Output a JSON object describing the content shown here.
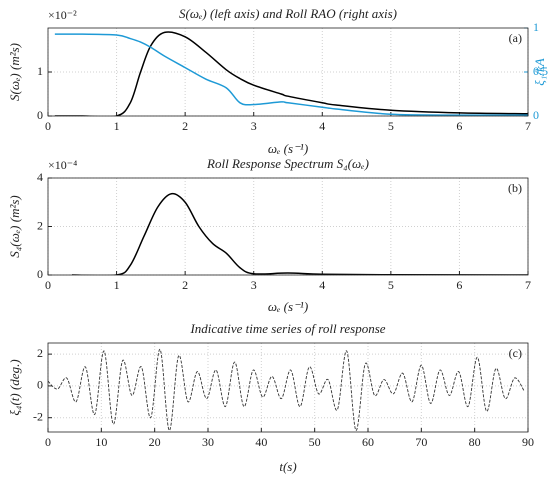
{
  "chart_data": [
    {
      "type": "line",
      "panel_label": "(a)",
      "title": "S(ωₑ) (left axis) and Roll RAO (right axis)",
      "xlabel": "ωₑ (s⁻¹)",
      "ylabel": "S(ωₑ) (m²s)",
      "y_exponent": "×10⁻²",
      "y2label": "ξ₁/kA",
      "xlim": [
        0,
        7
      ],
      "xticks": [
        0,
        1,
        2,
        3,
        4,
        5,
        6,
        7
      ],
      "ylim": [
        0,
        2
      ],
      "yticks": [
        0,
        1
      ],
      "y2lim": [
        0,
        1
      ],
      "y2ticks": [
        0,
        0.5,
        1
      ],
      "grid": true,
      "x": [
        0.1,
        0.5,
        1.0,
        1.2,
        1.35,
        1.5,
        1.7,
        2.0,
        2.3,
        2.6,
        2.8,
        3.0,
        3.4,
        3.5,
        4.0,
        4.2,
        5.0,
        6.0,
        7.0
      ],
      "series": [
        {
          "color": "#000000",
          "values": [
            0,
            0,
            0,
            0.3,
            1.0,
            1.6,
            1.9,
            1.8,
            1.45,
            1.05,
            0.85,
            0.7,
            0.5,
            0.45,
            0.3,
            0.25,
            0.13,
            0.07,
            0.05
          ]
        },
        {
          "color": "#1e9ad6",
          "axis": "y2",
          "values": [
            0.93,
            0.93,
            0.92,
            0.88,
            0.84,
            0.78,
            0.68,
            0.55,
            0.42,
            0.32,
            0.15,
            0.13,
            0.16,
            0.15,
            0.1,
            0.08,
            0.02,
            0.01,
            0.01
          ]
        }
      ]
    },
    {
      "type": "line",
      "panel_label": "(b)",
      "title": "Roll Response Spectrum S₄(ωₑ)",
      "xlabel": "ωₑ (s⁻¹)",
      "ylabel": "S₄(ωₑ) (m²s)",
      "y_exponent": "×10⁻⁴",
      "xlim": [
        0,
        7
      ],
      "xticks": [
        0,
        1,
        2,
        3,
        4,
        5,
        6,
        7
      ],
      "ylim": [
        0,
        4
      ],
      "yticks": [
        0,
        2,
        4
      ],
      "grid": true,
      "x": [
        0.35,
        1.0,
        1.2,
        1.4,
        1.6,
        1.8,
        2.0,
        2.2,
        2.4,
        2.6,
        2.8,
        3.0,
        3.5,
        4.0,
        5.0,
        7.0
      ],
      "series": [
        {
          "color": "#000000",
          "values": [
            0,
            0,
            0.4,
            1.6,
            2.8,
            3.35,
            3.0,
            2.0,
            1.3,
            0.9,
            0.3,
            0.05,
            0.08,
            0.03,
            0.01,
            0
          ]
        }
      ]
    },
    {
      "type": "line",
      "panel_label": "(c)",
      "title": "Indicative time series of roll response",
      "xlabel": "t(s)",
      "ylabel": "ξ₄(t) (deg.)",
      "xlim": [
        0,
        90
      ],
      "xticks": [
        0,
        10,
        20,
        30,
        40,
        50,
        60,
        70,
        80,
        90
      ],
      "ylim": [
        -2.9,
        2.7
      ],
      "yticks": [
        -2,
        0,
        2
      ],
      "grid": true,
      "linestyle": "dashed",
      "x": [
        0,
        1.75,
        3.5,
        5.25,
        7,
        8.75,
        10.5,
        12.25,
        14,
        15.75,
        17.5,
        19.25,
        21,
        22.75,
        24.5,
        26.25,
        28,
        29.75,
        31.5,
        33.25,
        35,
        36.75,
        38.5,
        40.25,
        42,
        43.75,
        45.5,
        47.25,
        49,
        50.75,
        52.5,
        54.25,
        56,
        57.75,
        59.5,
        61.25,
        63,
        64.75,
        66.5,
        68.25,
        70,
        71.75,
        73.5,
        75.25,
        77,
        78.75,
        80.5,
        82.25,
        84,
        85.75,
        87.5,
        89.25
      ],
      "series": [
        {
          "color": "#333333",
          "values": [
            0.3,
            -0.2,
            0.5,
            -1.0,
            1.2,
            -1.8,
            2.2,
            -2.4,
            1.6,
            -0.6,
            1.2,
            -2.0,
            2.3,
            -2.8,
            1.9,
            -1.0,
            0.9,
            -0.8,
            1.0,
            -1.3,
            1.5,
            -1.3,
            1.0,
            -0.7,
            0.6,
            -0.8,
            1.0,
            -1.3,
            1.2,
            -0.5,
            0.4,
            -1.5,
            2.2,
            -2.8,
            1.4,
            -0.6,
            0.4,
            -0.5,
            0.8,
            -1.0,
            1.3,
            -1.1,
            1.0,
            -0.6,
            0.9,
            -1.3,
            1.8,
            -1.6,
            1.1,
            -0.8,
            0.5,
            -0.3
          ]
        }
      ]
    }
  ]
}
